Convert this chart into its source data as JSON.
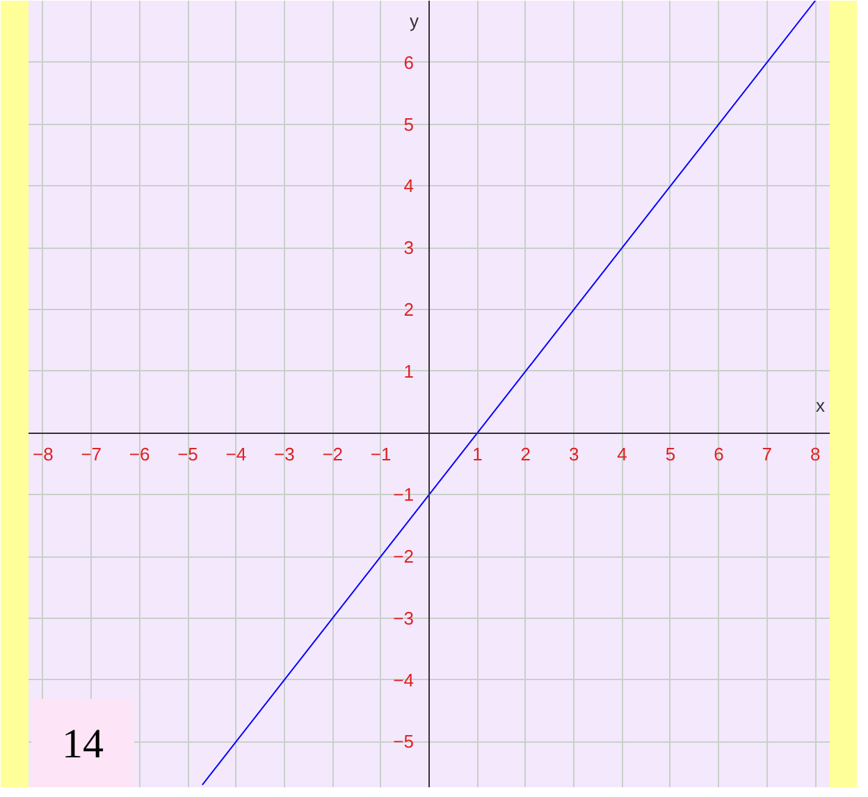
{
  "chart_data": {
    "type": "line",
    "xlabel": "x",
    "ylabel": "y",
    "annotations": [
      "14"
    ],
    "series": [
      {
        "color": "#0000ff",
        "x": [
          -4.7,
          8
        ],
        "values": [
          -5.7,
          7
        ]
      }
    ],
    "xlim": [
      -8.3,
      8.3
    ],
    "ylim": [
      -5.75,
      7
    ],
    "xticks": [
      -8,
      -7,
      -6,
      -5,
      -4,
      -3,
      -2,
      -1,
      1,
      2,
      3,
      4,
      5,
      6,
      7,
      8
    ],
    "yticks": [
      -5,
      -4,
      -3,
      -2,
      -1,
      1,
      2,
      3,
      4,
      5,
      6
    ],
    "grid": true
  }
}
